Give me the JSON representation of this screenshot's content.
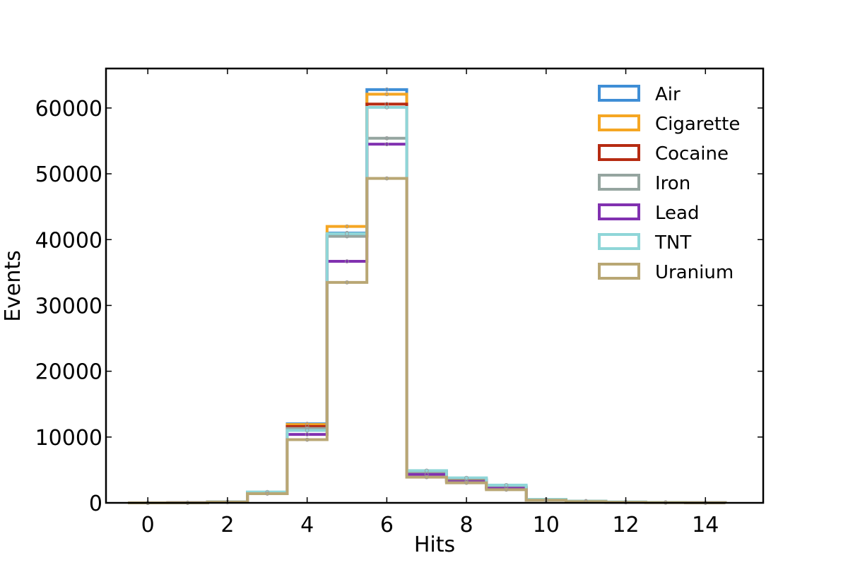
{
  "chart_data": {
    "type": "histogram-step",
    "xlabel": "Hits",
    "ylabel": "Events",
    "xlim": [
      -1.05,
      15.45
    ],
    "ylim": [
      0,
      66000
    ],
    "xticks": [
      0,
      2,
      4,
      6,
      8,
      10,
      12,
      14
    ],
    "yticks": [
      0,
      10000,
      20000,
      30000,
      40000,
      50000,
      60000
    ],
    "grid": false,
    "legend_position": "top-right",
    "bins": [
      0,
      1,
      2,
      3,
      4,
      5,
      6,
      7,
      8,
      9,
      10,
      11,
      12,
      13,
      14
    ],
    "series": [
      {
        "name": "Air",
        "color": "#3f8ed6",
        "values": [
          0,
          20,
          150,
          1600,
          12000,
          41000,
          62800,
          4800,
          3600,
          2500,
          500,
          250,
          120,
          60,
          30
        ]
      },
      {
        "name": "Cigarette",
        "color": "#f5a623",
        "values": [
          0,
          20,
          150,
          1600,
          11900,
          42000,
          62100,
          4700,
          3500,
          2400,
          480,
          240,
          110,
          55,
          25
        ]
      },
      {
        "name": "Cocaine",
        "color": "#b62b12",
        "values": [
          0,
          20,
          140,
          1550,
          11600,
          40600,
          60600,
          4600,
          3400,
          2350,
          470,
          230,
          110,
          55,
          25
        ]
      },
      {
        "name": "Iron",
        "color": "#95a5a0",
        "values": [
          0,
          20,
          140,
          1550,
          11300,
          40500,
          55400,
          4500,
          3300,
          2300,
          460,
          220,
          100,
          50,
          25
        ]
      },
      {
        "name": "Lead",
        "color": "#8131b0",
        "values": [
          0,
          15,
          130,
          1450,
          10400,
          36700,
          54500,
          4300,
          3200,
          2200,
          440,
          210,
          100,
          50,
          20
        ]
      },
      {
        "name": "TNT",
        "color": "#8fd6d8",
        "values": [
          0,
          20,
          150,
          1650,
          11000,
          40900,
          60100,
          4900,
          3800,
          2700,
          520,
          260,
          130,
          65,
          30
        ]
      },
      {
        "name": "Uranium",
        "color": "#b9a774",
        "values": [
          0,
          15,
          120,
          1400,
          9600,
          33500,
          49300,
          3900,
          3050,
          2000,
          400,
          190,
          90,
          45,
          20
        ]
      }
    ]
  }
}
